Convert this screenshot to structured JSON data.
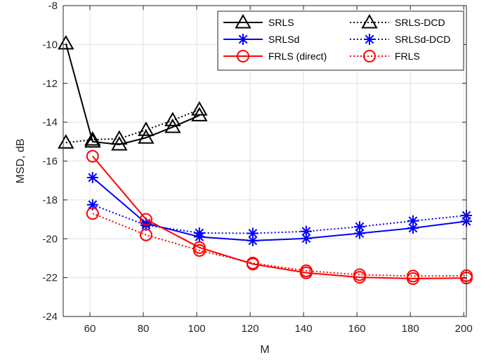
{
  "chart_data": {
    "type": "line",
    "xlabel": "M",
    "ylabel": "MSD, dB",
    "xlim": [
      50,
      201
    ],
    "ylim": [
      -24,
      -8
    ],
    "xticks": [
      60,
      80,
      100,
      120,
      140,
      160,
      180,
      200
    ],
    "yticks": [
      -24,
      -22,
      -20,
      -18,
      -16,
      -14,
      -12,
      -10,
      -8
    ],
    "grid": true,
    "legend_position": "top-right",
    "legend_columns": 2,
    "series": [
      {
        "name": "SRLS",
        "color": "#000000",
        "linestyle": "solid",
        "marker": "triangle",
        "x": [
          51,
          61,
          71,
          81,
          91,
          101
        ],
        "y": [
          -9.95,
          -15.0,
          -15.15,
          -14.8,
          -14.25,
          -13.65
        ]
      },
      {
        "name": "SRLS-DCD",
        "color": "#000000",
        "linestyle": "dotted",
        "marker": "triangle",
        "x": [
          51,
          61,
          71,
          81,
          91,
          101
        ],
        "y": [
          -15.05,
          -14.9,
          -14.85,
          -14.4,
          -13.9,
          -13.35
        ]
      },
      {
        "name": "SRLSd",
        "color": "#0000ff",
        "linestyle": "solid",
        "marker": "asterisk",
        "x": [
          61,
          81,
          101,
          121,
          141,
          161,
          181,
          201
        ],
        "y": [
          -16.85,
          -19.2,
          -19.9,
          -20.1,
          -19.98,
          -19.72,
          -19.45,
          -19.1
        ]
      },
      {
        "name": "SRLSd-DCD",
        "color": "#0000ff",
        "linestyle": "dotted",
        "marker": "asterisk",
        "x": [
          61,
          81,
          101,
          121,
          141,
          161,
          181,
          201
        ],
        "y": [
          -18.25,
          -19.3,
          -19.7,
          -19.72,
          -19.62,
          -19.38,
          -19.08,
          -18.8
        ]
      },
      {
        "name": "FRLS (direct)",
        "color": "#ff0000",
        "linestyle": "solid",
        "marker": "circle",
        "x": [
          61,
          81,
          101,
          121,
          141,
          161,
          181,
          201
        ],
        "y": [
          -15.75,
          -19.0,
          -20.45,
          -21.3,
          -21.75,
          -21.98,
          -22.05,
          -22.02
        ]
      },
      {
        "name": "FRLS",
        "color": "#ff0000",
        "linestyle": "dotted",
        "marker": "circle",
        "x": [
          61,
          81,
          101,
          121,
          141,
          161,
          181,
          201
        ],
        "y": [
          -18.7,
          -19.8,
          -20.6,
          -21.25,
          -21.65,
          -21.85,
          -21.92,
          -21.9
        ]
      }
    ]
  }
}
